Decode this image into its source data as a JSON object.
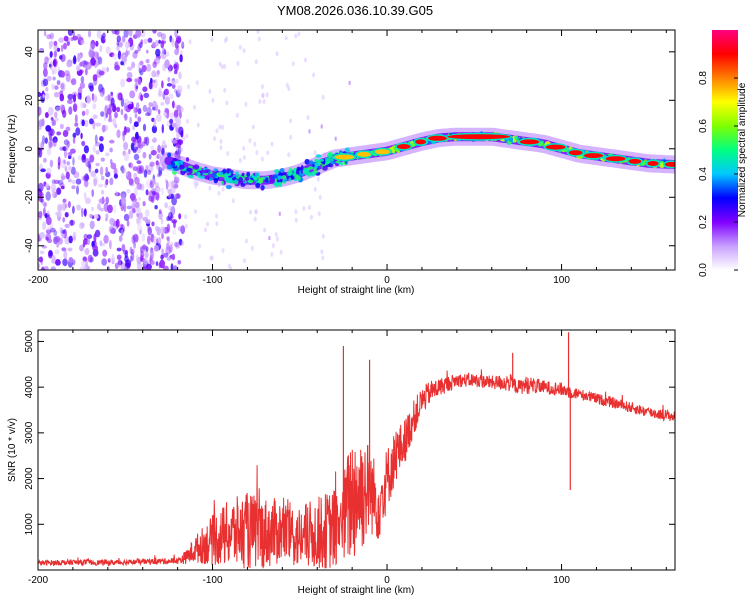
{
  "title": "YM08.2026.036.10.39.G05",
  "chart_data": [
    {
      "type": "heatmap",
      "title": "YM08.2026.036.10.39.G05",
      "xlabel": "Height of straight line (km)",
      "ylabel": "Frequency (Hz)",
      "xlim": [
        -200,
        165
      ],
      "ylim": [
        -50,
        49
      ],
      "xticks": [
        -200,
        -100,
        0,
        100
      ],
      "yticks": [
        -40,
        -20,
        0,
        20,
        40
      ],
      "ridge": {
        "x": [
          -125,
          -110,
          -100,
          -90,
          -80,
          -70,
          -60,
          -50,
          -40,
          -30,
          -20,
          -10,
          0,
          10,
          20,
          30,
          40,
          50,
          60,
          70,
          80,
          90,
          100,
          110,
          120,
          130,
          140,
          150,
          165
        ],
        "freq": [
          -5,
          -9,
          -11,
          -12,
          -13,
          -13,
          -12,
          -10,
          -7,
          -4,
          -3,
          -2,
          -1,
          1,
          3,
          4.5,
          5,
          5,
          5,
          4,
          3,
          2,
          0,
          -2,
          -3,
          -4,
          -5,
          -6,
          -6.5
        ]
      },
      "noise_region_x": [
        -200,
        -125
      ]
    },
    {
      "type": "colorbar",
      "label": "Normalized spectral amplitude",
      "range": [
        0,
        1
      ],
      "ticks": [
        "0.0",
        "0.2",
        "0.4",
        "0.6",
        "0.8"
      ],
      "colormap": [
        "#ffffff",
        "#c8a0ff",
        "#8000ff",
        "#0000ff",
        "#00c8ff",
        "#00ff80",
        "#80ff00",
        "#ffff00",
        "#ff8000",
        "#ff0000",
        "#ff0080"
      ]
    },
    {
      "type": "line",
      "series": [
        {
          "name": "SNR",
          "color": "#e83030",
          "x": [
            -200,
            -180,
            -160,
            -140,
            -120,
            -115,
            -110,
            -100,
            -90,
            -80,
            -70,
            -60,
            -50,
            -40,
            -30,
            -25,
            -20,
            -15,
            -10,
            -5,
            0,
            5,
            10,
            15,
            20,
            25,
            30,
            40,
            50,
            60,
            70,
            75,
            80,
            90,
            100,
            105,
            110,
            120,
            130,
            140,
            150,
            165
          ],
          "y": [
            150,
            170,
            160,
            180,
            200,
            280,
            450,
            650,
            800,
            850,
            800,
            850,
            700,
            800,
            900,
            1100,
            1600,
            1700,
            1800,
            1400,
            2000,
            2500,
            2800,
            3300,
            3700,
            3900,
            4000,
            4150,
            4150,
            4100,
            4100,
            4000,
            4050,
            4000,
            3950,
            3900,
            3850,
            3750,
            3650,
            3550,
            3450,
            3350
          ],
          "amp": [
            60,
            60,
            60,
            60,
            70,
            150,
            300,
            550,
            750,
            850,
            800,
            700,
            700,
            800,
            900,
            1000,
            1500,
            1400,
            1000,
            800,
            700,
            600,
            500,
            400,
            300,
            250,
            200,
            150,
            150,
            150,
            200,
            150,
            200,
            150,
            150,
            150,
            120,
            120,
            120,
            120,
            120,
            120
          ]
        }
      ],
      "spikes": [
        {
          "x": -25,
          "y": 4900
        },
        {
          "x": -10,
          "y": 4600
        },
        {
          "x": 72,
          "y": 4750
        },
        {
          "x": 104,
          "y": 5200
        },
        {
          "x": 105,
          "y": 1750
        }
      ],
      "xlabel": "Height of straight line (km)",
      "ylabel": "SNR (10 * v/v)",
      "xlim": [
        -200,
        165
      ],
      "ylim": [
        0,
        5250
      ],
      "xticks": [
        -200,
        -100,
        0,
        100
      ],
      "yticks": [
        1000,
        2000,
        3000,
        4000,
        5000
      ]
    }
  ]
}
